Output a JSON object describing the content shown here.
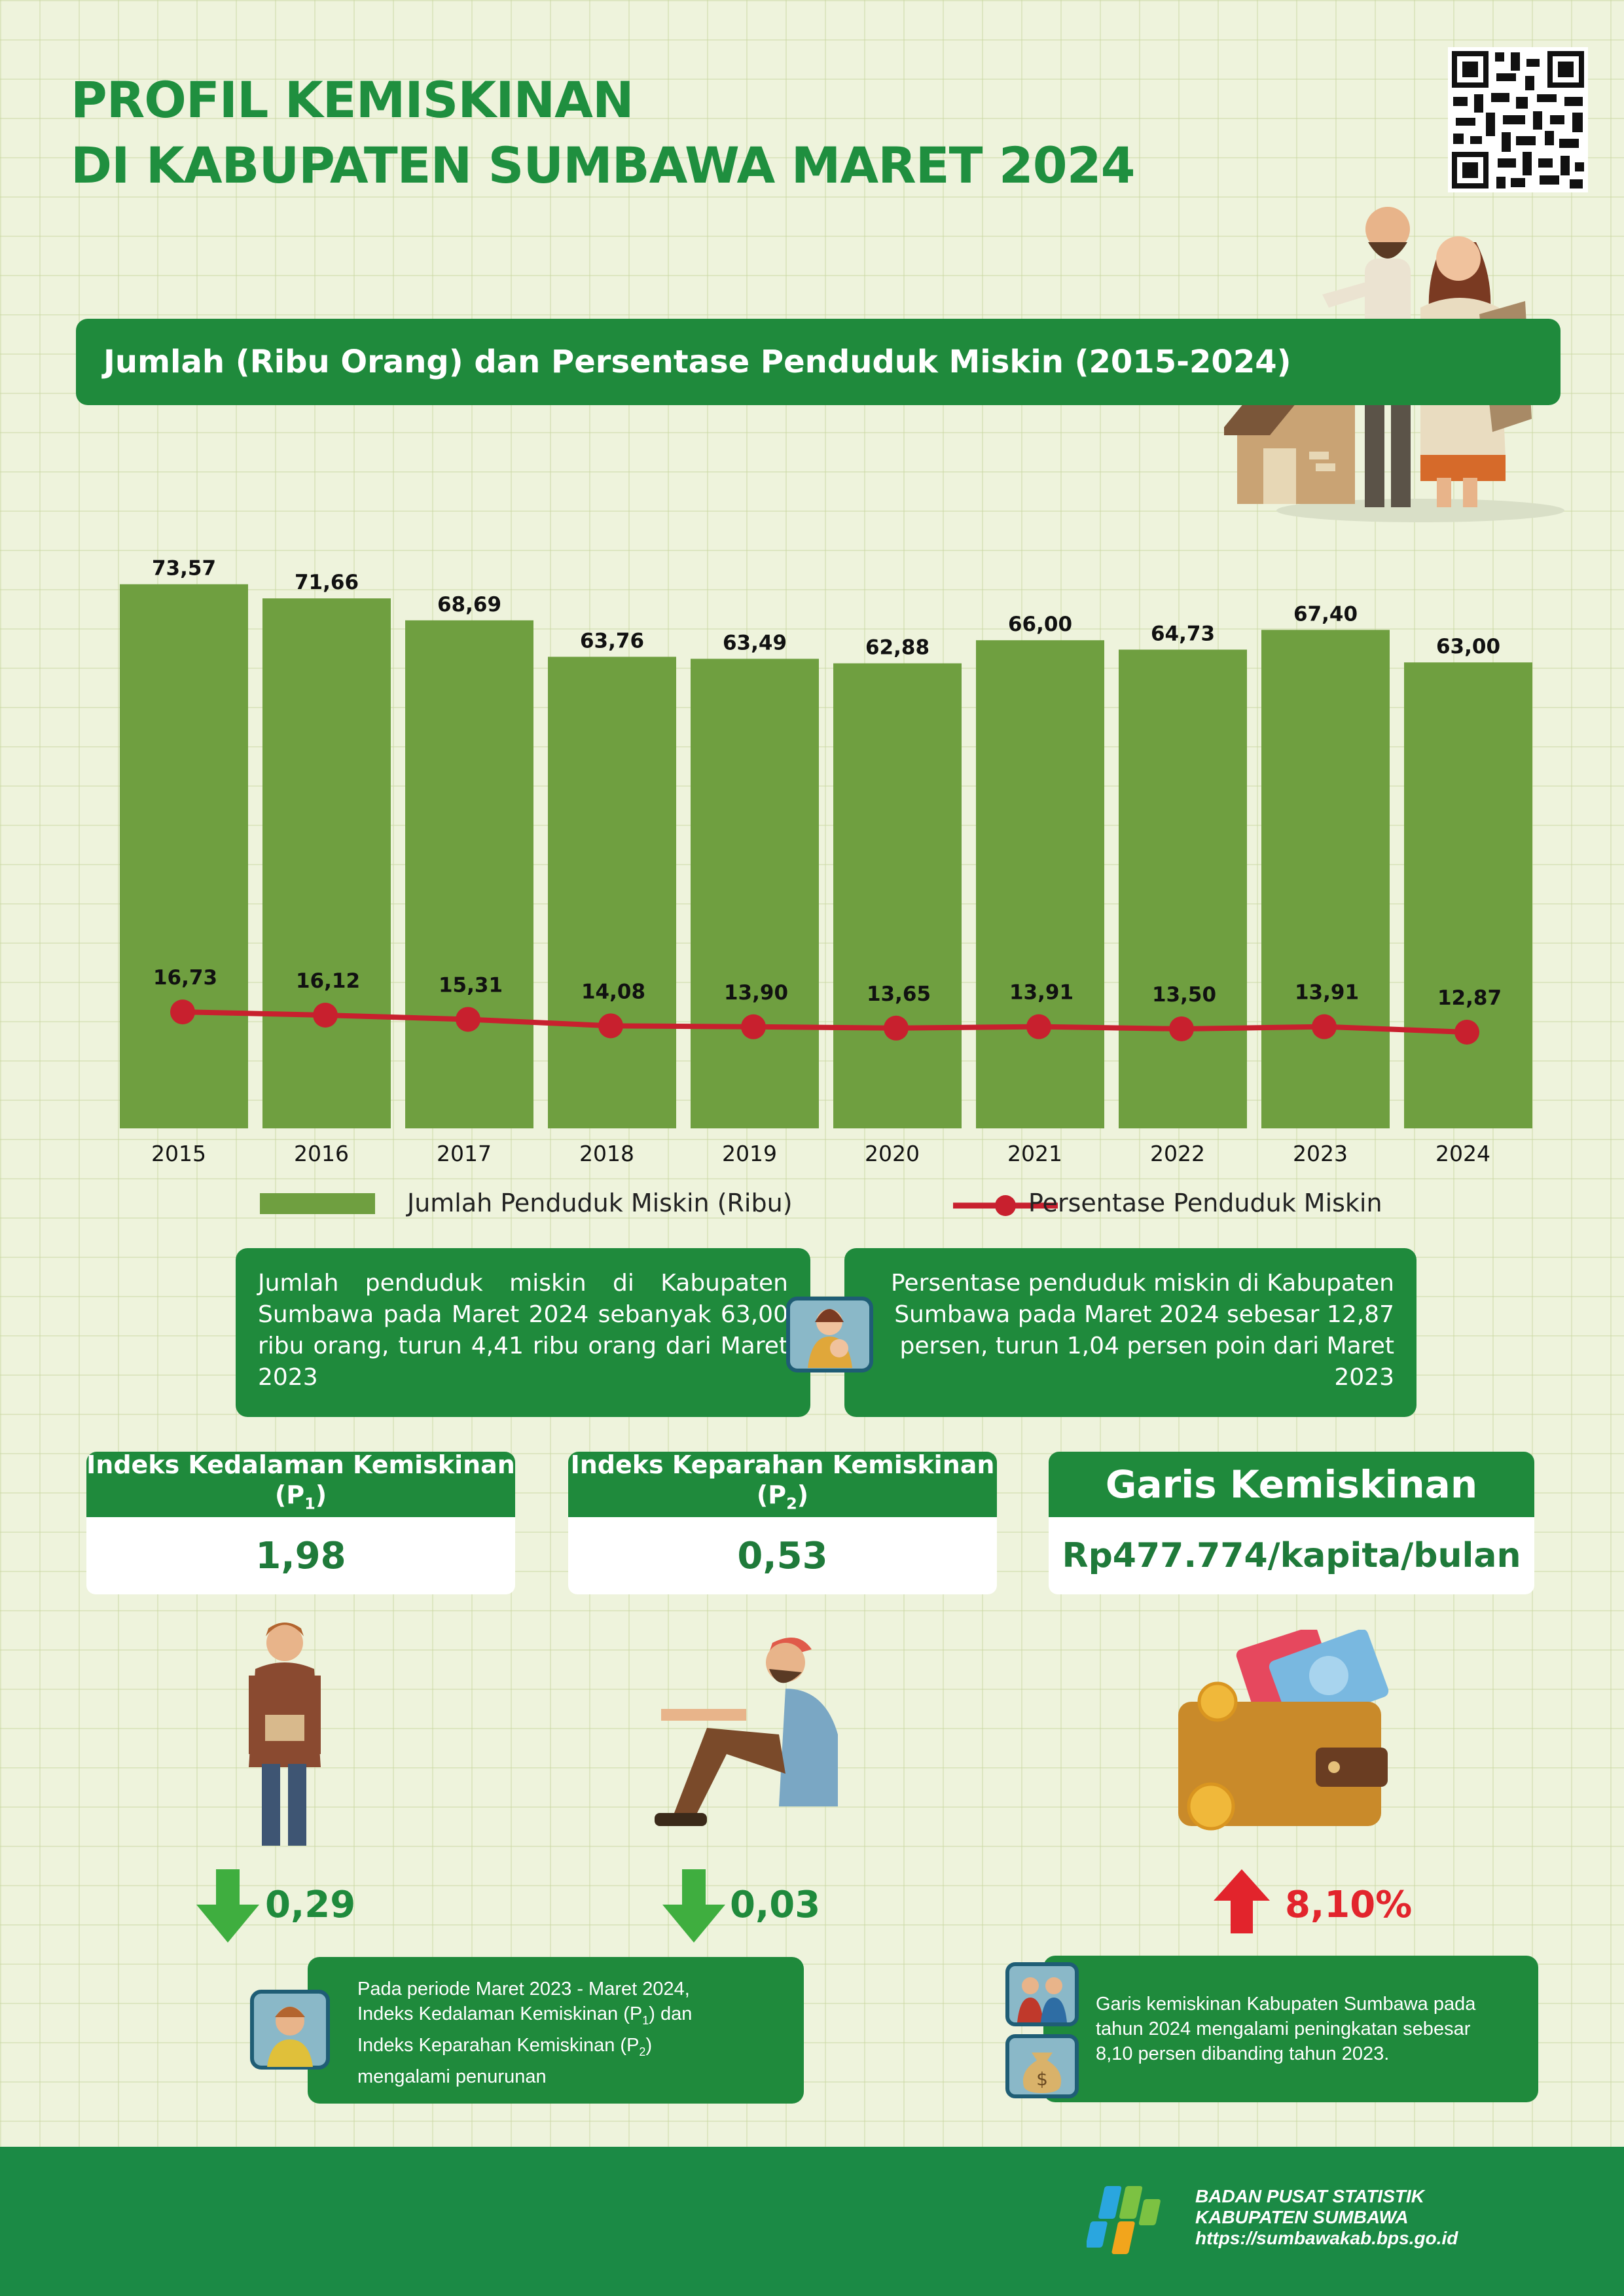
{
  "header": {
    "title_line1": "PROFIL KEMISKINAN",
    "title_line2": "DI KABUPATEN SUMBAWA MARET 2024"
  },
  "chart_banner": {
    "title": "Jumlah (Ribu Orang) dan Persentase Penduduk Miskin (2015-2024)"
  },
  "chart_data": {
    "type": "bar",
    "categories": [
      "2015",
      "2016",
      "2017",
      "2018",
      "2019",
      "2020",
      "2021",
      "2022",
      "2023",
      "2024"
    ],
    "series": [
      {
        "name": "Jumlah Penduduk Miskin (Ribu)",
        "type": "bar",
        "values": [
          73.57,
          71.66,
          68.69,
          63.76,
          63.49,
          62.88,
          66.0,
          64.73,
          67.4,
          63.0
        ],
        "labels": [
          "73,57",
          "71,66",
          "68,69",
          "63,76",
          "63,49",
          "62,88",
          "66,00",
          "64,73",
          "67,40",
          "63,00"
        ]
      },
      {
        "name": "Persentase Penduduk Miskin",
        "type": "line",
        "values": [
          16.73,
          16.12,
          15.31,
          14.08,
          13.9,
          13.65,
          13.91,
          13.5,
          13.91,
          12.87
        ],
        "labels": [
          "16,73",
          "16,12",
          "15,31",
          "14,08",
          "13,90",
          "13,65",
          "13,91",
          "13,50",
          "13,91",
          "12,87"
        ]
      }
    ],
    "colors": {
      "bar": "#6f9f40",
      "line": "#c8202e"
    },
    "grid": false,
    "legend_position": "bottom"
  },
  "legend": {
    "bar_label": "Jumlah Penduduk Miskin (Ribu)",
    "line_label": "Persentase Penduduk Miskin"
  },
  "info": {
    "left": "Jumlah penduduk miskin di Kabupaten Sumbawa pada Maret 2024 sebanyak 63,00 ribu orang, turun 4,41 ribu orang dari Maret 2023",
    "right": "Persentase penduduk miskin di Kabupaten Sumbawa pada Maret 2024 sebesar 12,87 persen, turun 1,04 persen poin dari Maret 2023"
  },
  "indicators": {
    "p1": {
      "title": "Indeks Kedalaman Kemiskinan",
      "sub": "(P",
      "subscript": "1",
      "sub_end": ")",
      "value": "1,98",
      "change": "0,29"
    },
    "p2": {
      "title": "Indeks Keparahan Kemiskinan",
      "sub": "(P",
      "subscript": "2",
      "sub_end": ")",
      "value": "0,53",
      "change": "0,03"
    },
    "gk": {
      "title": "Garis Kemiskinan",
      "value": "Rp477.774/kapita/bulan",
      "change": "8,10%"
    }
  },
  "notes": {
    "index_note": [
      "Pada periode Maret 2023 - Maret 2024,",
      "Indeks Kedalaman Kemiskinan (P",
      "1",
      ") dan",
      "Indeks Keparahan Kemiskinan (P",
      "2",
      ")",
      "mengalami penurunan"
    ],
    "gk_note": "Garis kemiskinan Kabupaten Sumbawa pada tahun 2024 mengalami peningkatan sebesar 8,10 persen dibanding tahun 2023."
  },
  "footer": {
    "org_line1": "BADAN PUSAT STATISTIK",
    "org_line2": "KABUPATEN SUMBAWA",
    "url": "https://sumbawakab.bps.go.id"
  },
  "theme": {
    "green": "#1f8a3c",
    "title_green": "#1f8f3f",
    "up_red": "#e2242c"
  }
}
